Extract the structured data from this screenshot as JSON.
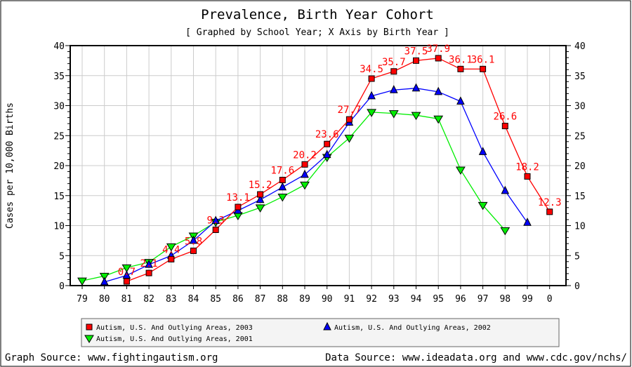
{
  "chart_data": {
    "type": "line",
    "title": "Prevalence, Birth Year Cohort",
    "subtitle": "[ Graphed by School Year; X Axis by Birth Year ]",
    "ylabel": "Cases per 10,000 Births",
    "xlabel": "",
    "ylim": [
      0,
      40
    ],
    "yticks": [
      0,
      5,
      10,
      15,
      20,
      25,
      30,
      35,
      40
    ],
    "categories": [
      "79",
      "80",
      "81",
      "82",
      "83",
      "84",
      "85",
      "86",
      "87",
      "88",
      "89",
      "90",
      "91",
      "92",
      "93",
      "94",
      "95",
      "96",
      "97",
      "98",
      "99",
      "0"
    ],
    "grid": true,
    "legend_position": "bottom",
    "series": [
      {
        "name": "Autism, U.S. And Outlying Areas, 2003",
        "color": "#ff0000",
        "marker": "square",
        "labels": true,
        "values": [
          null,
          null,
          0.7,
          2.1,
          4.4,
          5.8,
          9.3,
          13.1,
          15.2,
          17.6,
          20.2,
          23.6,
          27.7,
          34.5,
          35.7,
          37.5,
          37.9,
          36.1,
          36.1,
          26.6,
          18.2,
          12.3
        ]
      },
      {
        "name": "Autism, U.S. And Outlying Areas, 2002",
        "color": "#0000ff",
        "marker": "triangle-up",
        "labels": false,
        "values": [
          null,
          0.6,
          1.7,
          3.5,
          5.0,
          7.5,
          10.8,
          12.5,
          14.3,
          16.4,
          18.5,
          21.8,
          27.2,
          31.6,
          32.6,
          32.9,
          32.3,
          30.7,
          22.3,
          15.8,
          10.5,
          null
        ]
      },
      {
        "name": "Autism, U.S. And Outlying Areas, 2001",
        "color": "#00ee00",
        "marker": "triangle-down",
        "labels": false,
        "values": [
          0.8,
          1.6,
          3.0,
          3.9,
          6.5,
          8.3,
          10.6,
          11.7,
          13.0,
          14.8,
          16.8,
          21.4,
          24.6,
          28.9,
          28.7,
          28.4,
          27.8,
          19.3,
          13.4,
          9.2,
          null,
          null
        ]
      }
    ]
  },
  "footer": {
    "graph_source": "Graph Source: www.fightingautism.org",
    "data_source": "Data Source: www.ideadata.org and www.cdc.gov/nchs/"
  }
}
